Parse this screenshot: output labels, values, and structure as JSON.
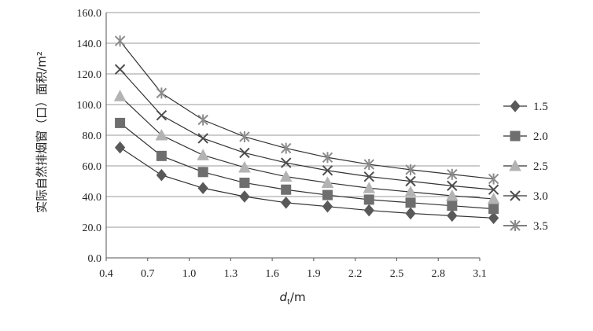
{
  "chart_data": {
    "type": "line",
    "xlabel_main": "d",
    "xlabel_sub": "t",
    "xlabel_unit": "/m",
    "ylabel": "实际自然排烟窗（口）面积/m²",
    "x_ticks": [
      "0.4",
      "0.7",
      "1.0",
      "1.3",
      "1.6",
      "1.9",
      "2.2",
      "2.5",
      "2.8",
      "3.1"
    ],
    "y_ticks": [
      "0.0",
      "20.0",
      "40.0",
      "60.0",
      "80.0",
      "100.0",
      "120.0",
      "140.0",
      "160.0"
    ],
    "xlim": [
      0.4,
      3.1
    ],
    "ylim": [
      0,
      160
    ],
    "grid": "horizontal",
    "legend_position": "right",
    "x": [
      0.5,
      0.8,
      1.1,
      1.4,
      1.7,
      2.0,
      2.3,
      2.6,
      2.9,
      3.2
    ],
    "series": [
      {
        "name": "1.5",
        "marker": "diamond",
        "color": "#595959",
        "values": [
          72,
          54,
          45.5,
          40,
          36,
          33.5,
          31,
          29,
          27.5,
          26
        ]
      },
      {
        "name": "2.0",
        "marker": "square",
        "color": "#6e6e6e",
        "values": [
          88,
          66.5,
          56,
          49,
          44.5,
          41,
          38,
          36,
          34,
          32
        ]
      },
      {
        "name": "2.5",
        "marker": "triangle",
        "color": "#b3b3b3",
        "values": [
          105.5,
          80,
          67,
          59,
          53,
          49,
          45.5,
          43,
          40.5,
          38.5
        ]
      },
      {
        "name": "3.0",
        "marker": "x",
        "color": "#4d4d4d",
        "values": [
          123,
          93,
          78,
          68.5,
          62,
          57,
          53,
          50,
          47,
          44.5
        ]
      },
      {
        "name": "3.5",
        "marker": "star",
        "color": "#8c8c8c",
        "values": [
          141.5,
          107.5,
          90,
          79,
          71.5,
          65.5,
          61,
          57.5,
          54.5,
          51.5
        ]
      }
    ]
  }
}
